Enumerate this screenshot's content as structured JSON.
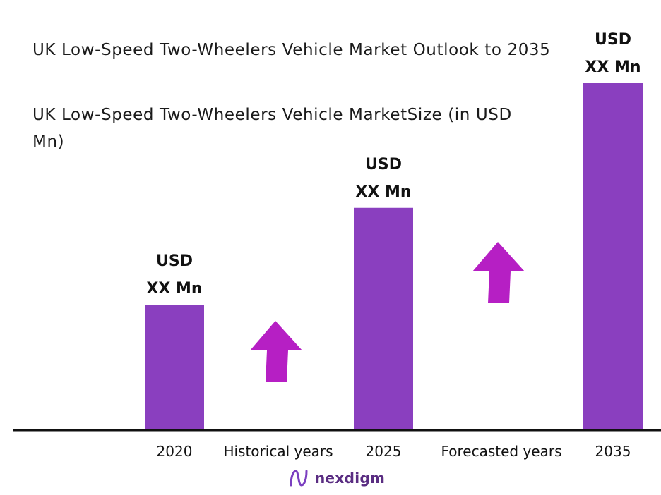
{
  "title_line": "UK Low-Speed Two-Wheelers Vehicle Market Outlook to 2035",
  "subtitle_line": "UK Low-Speed Two-Wheelers Vehicle MarketSize (in USD Mn)",
  "brand": "nexdigm",
  "colors": {
    "bar": "#8a3fbf",
    "arrow": "#b61fc4",
    "axis": "#111111",
    "brand": "#5a2d82"
  },
  "chart_data": {
    "type": "bar",
    "title": "UK Low-Speed Two-Wheelers Vehicle Market Outlook to 2035",
    "subtitle": "UK Low-Speed Two-Wheelers Vehicle MarketSize (in USD Mn)",
    "categories": [
      "2020",
      "2025",
      "2035"
    ],
    "values": [
      36,
      64,
      100
    ],
    "bar_labels": [
      {
        "line1": "USD",
        "line2": "XX Mn"
      },
      {
        "line1": "USD",
        "line2": "XX Mn"
      },
      {
        "line1": "USD",
        "line2": "XX Mn"
      }
    ],
    "annotations": [
      {
        "text": "Historical years",
        "between": [
          "2020",
          "2025"
        ],
        "icon": "up-arrow-icon"
      },
      {
        "text": "Forecasted years",
        "between": [
          "2025",
          "2035"
        ],
        "icon": "up-arrow-icon"
      }
    ],
    "ylim": [
      0,
      100
    ],
    "grid": false,
    "legend": "none"
  }
}
